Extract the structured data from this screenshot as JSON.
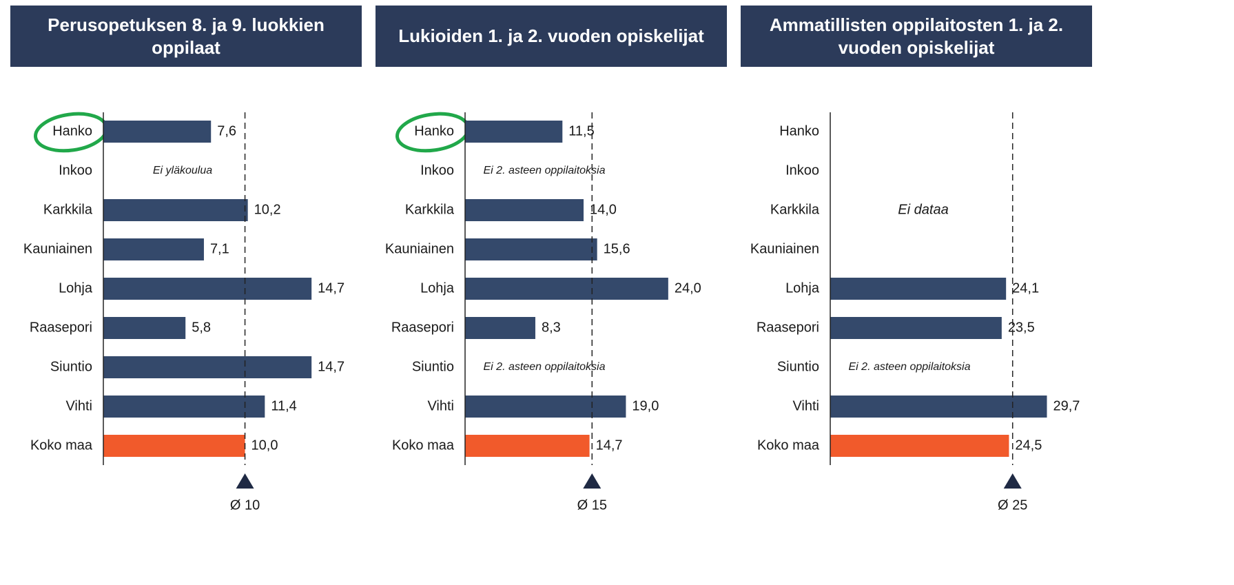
{
  "chart_data": [
    {
      "type": "hbar",
      "title": "Perusopetuksen 8. ja 9. luokkien oppilaat",
      "categories": [
        "Hanko",
        "Inkoo",
        "Karkkila",
        "Kauniainen",
        "Lohja",
        "Raasepori",
        "Siuntio",
        "Vihti",
        "Koko maa"
      ],
      "values": [
        7.6,
        null,
        10.2,
        7.1,
        14.7,
        5.8,
        14.7,
        11.4,
        10.0
      ],
      "value_labels": [
        "7,6",
        null,
        "10,2",
        "7,1",
        "14,7",
        "5,8",
        "14,7",
        "11,4",
        "10,0"
      ],
      "colors": [
        "#34496b",
        "#34496b",
        "#34496b",
        "#34496b",
        "#34496b",
        "#34496b",
        "#34496b",
        "#34496b",
        "#f15a2b"
      ],
      "xlim": [
        0,
        18
      ],
      "reference": {
        "value": 10,
        "label": "Ø 10"
      },
      "annotations": [
        {
          "text": "Ei yläkoulua",
          "category": "Inkoo"
        }
      ],
      "highlight_category": "Hanko"
    },
    {
      "type": "hbar",
      "title": "Lukioiden 1. ja 2. vuoden opiskelijat",
      "categories": [
        "Hanko",
        "Inkoo",
        "Karkkila",
        "Kauniainen",
        "Lohja",
        "Raasepori",
        "Siuntio",
        "Vihti",
        "Koko maa"
      ],
      "values": [
        11.5,
        null,
        14.0,
        15.6,
        24.0,
        8.3,
        null,
        19.0,
        14.7
      ],
      "value_labels": [
        "11,5",
        null,
        "14,0",
        "15,6",
        "24,0",
        "8,3",
        null,
        "19,0",
        "14,7"
      ],
      "colors": [
        "#34496b",
        "#34496b",
        "#34496b",
        "#34496b",
        "#34496b",
        "#34496b",
        "#34496b",
        "#34496b",
        "#f15a2b"
      ],
      "xlim": [
        0,
        28
      ],
      "reference": {
        "value": 15,
        "label": "Ø 15"
      },
      "annotations": [
        {
          "text": "Ei 2. asteen oppilaitoksia",
          "category": "Inkoo"
        },
        {
          "text": "Ei 2. asteen oppilaitoksia",
          "category": "Siuntio"
        }
      ],
      "highlight_category": "Hanko"
    },
    {
      "type": "hbar",
      "title": "Ammatillisten oppilaitosten 1. ja 2. vuoden opiskelijat",
      "categories": [
        "Hanko",
        "Inkoo",
        "Karkkila",
        "Kauniainen",
        "Lohja",
        "Raasepori",
        "Siuntio",
        "Vihti",
        "Koko maa"
      ],
      "values": [
        null,
        null,
        null,
        null,
        24.1,
        23.5,
        null,
        29.7,
        24.5
      ],
      "value_labels": [
        null,
        null,
        null,
        null,
        "24,1",
        "23,5",
        null,
        "29,7",
        "24,5"
      ],
      "colors": [
        "#34496b",
        "#34496b",
        "#34496b",
        "#34496b",
        "#34496b",
        "#34496b",
        "#34496b",
        "#34496b",
        "#f15a2b"
      ],
      "xlim": [
        0,
        34
      ],
      "reference": {
        "value": 25,
        "label": "Ø 25"
      },
      "annotations": [
        {
          "text": "Ei dataa",
          "category": "Karkkila"
        },
        {
          "text": "Ei 2. asteen oppilaitoksia",
          "category": "Siuntio"
        }
      ]
    }
  ]
}
